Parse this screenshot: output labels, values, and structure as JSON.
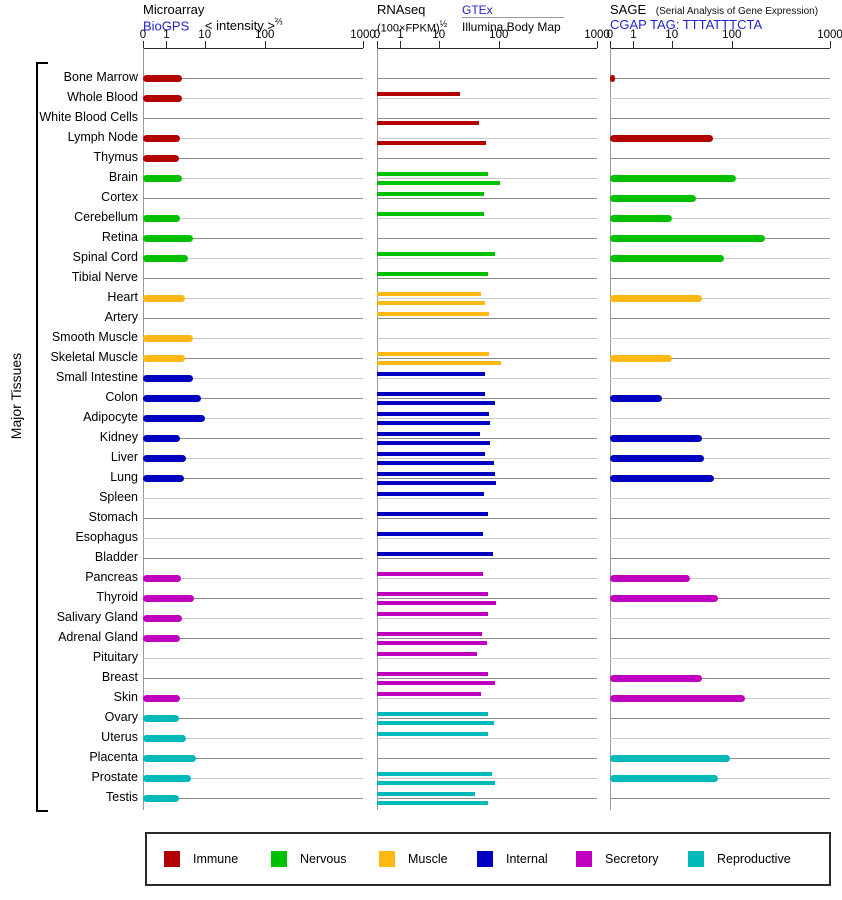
{
  "left_label": "Major Tissues",
  "axis": {
    "ticks": [
      "0",
      "1",
      "10",
      "100",
      "1000"
    ]
  },
  "panels": {
    "microarray": {
      "title": "Microarray",
      "source_link": "BioGPS",
      "scale_label": "< intensity >",
      "scale_sup": "⅔"
    },
    "rnaseq": {
      "title": "RNAseq",
      "scale_label": "(100×FPKM)",
      "scale_sup": "½",
      "source_top": "GTEx",
      "source_bottom": "Illumina Body Map"
    },
    "sage": {
      "title": "SAGE",
      "subtitle": "(Serial Analysis of Gene Expression)",
      "tag_label": "CGAP TAG: TTTATTTCTA"
    }
  },
  "colors": {
    "immune": "#b30000",
    "nervous": "#00c000",
    "muscle": "#fdb813",
    "internal": "#0000c0",
    "secretory": "#bf00bf",
    "reproductive": "#00b9b9",
    "link": "#2424cc",
    "row_line_even": "#8e8e8e",
    "row_line_odd": "#c9c9c9"
  },
  "legend": {
    "items": [
      {
        "label": "Immune",
        "key": "immune"
      },
      {
        "label": "Nervous",
        "key": "nervous"
      },
      {
        "label": "Muscle",
        "key": "muscle"
      },
      {
        "label": "Internal",
        "key": "internal"
      },
      {
        "label": "Secretory",
        "key": "secretory"
      },
      {
        "label": "Reproductive",
        "key": "reproductive"
      }
    ]
  },
  "chart_data": {
    "type": "bar",
    "orientation": "horizontal",
    "value_axis": {
      "ticks": [
        0,
        1,
        10,
        100,
        1000
      ],
      "scale": "nonlinear (compressed log-style, 0–1000)"
    },
    "legend_position": "bottom",
    "grid": "per-row horizontal lines",
    "categories": [
      "Bone Marrow",
      "Whole Blood",
      "White Blood Cells",
      "Lymph Node",
      "Thymus",
      "Brain",
      "Cortex",
      "Cerebellum",
      "Retina",
      "Spinal Cord",
      "Tibial Nerve",
      "Heart",
      "Artery",
      "Smooth Muscle",
      "Skeletal Muscle",
      "Small Intestine",
      "Colon",
      "Adipocyte",
      "Kidney",
      "Liver",
      "Lung",
      "Spleen",
      "Stomach",
      "Esophagus",
      "Bladder",
      "Pancreas",
      "Thyroid",
      "Salivary Gland",
      "Adrenal Gland",
      "Pituitary",
      "Breast",
      "Skin",
      "Ovary",
      "Uterus",
      "Placenta",
      "Prostate",
      "Testis"
    ],
    "tissue_groups": [
      "immune",
      "immune",
      "immune",
      "immune",
      "immune",
      "nervous",
      "nervous",
      "nervous",
      "nervous",
      "nervous",
      "nervous",
      "muscle",
      "muscle",
      "muscle",
      "muscle",
      "internal",
      "internal",
      "internal",
      "internal",
      "internal",
      "internal",
      "internal",
      "internal",
      "internal",
      "internal",
      "secretory",
      "secretory",
      "secretory",
      "secretory",
      "secretory",
      "secretory",
      "secretory",
      "reproductive",
      "reproductive",
      "reproductive",
      "reproductive",
      "reproductive"
    ],
    "series": [
      {
        "name": "Microarray (BioGPS, intensity^2/3)",
        "values": [
          2.6,
          2.5,
          null,
          2.2,
          2.1,
          2.6,
          null,
          2.2,
          5,
          3.7,
          null,
          3.1,
          null,
          5,
          3,
          5,
          8,
          10,
          2.3,
          3.2,
          2.8,
          null,
          null,
          null,
          null,
          2.4,
          5.2,
          2.5,
          2.2,
          null,
          null,
          2.2,
          2.1,
          3.2,
          6,
          4.3,
          2.1
        ]
      },
      {
        "name": "RNAseq (GTEx, (100×FPKM)^1/2)",
        "values": [
          null,
          23,
          null,
          null,
          null,
          66,
          57,
          56,
          null,
          87,
          67,
          51,
          69,
          null,
          69,
          59,
          60,
          69,
          49,
          59,
          86,
          57,
          66,
          55,
          79,
          55,
          66,
          66,
          52,
          44,
          66,
          51,
          66,
          66,
          null,
          76,
          40
        ]
      },
      {
        "name": "RNAseq (Illumina Body Map)",
        "values": [
          null,
          null,
          46,
          62,
          null,
          102,
          null,
          null,
          null,
          null,
          null,
          59,
          null,
          null,
          105,
          null,
          87,
          71,
          72,
          84,
          90,
          null,
          null,
          null,
          null,
          null,
          89,
          null,
          63,
          null,
          87,
          null,
          84,
          null,
          null,
          86,
          66
        ]
      },
      {
        "name": "SAGE (CGAP TAG: TTTATTTCTA)",
        "values": [
          0.2,
          null,
          null,
          48,
          null,
          110,
          25,
          10,
          220,
          75,
          null,
          32,
          null,
          null,
          10,
          null,
          5.5,
          null,
          32,
          35,
          51,
          null,
          null,
          null,
          null,
          20,
          60,
          null,
          null,
          null,
          32,
          135,
          null,
          null,
          95,
          58,
          null
        ]
      }
    ]
  }
}
